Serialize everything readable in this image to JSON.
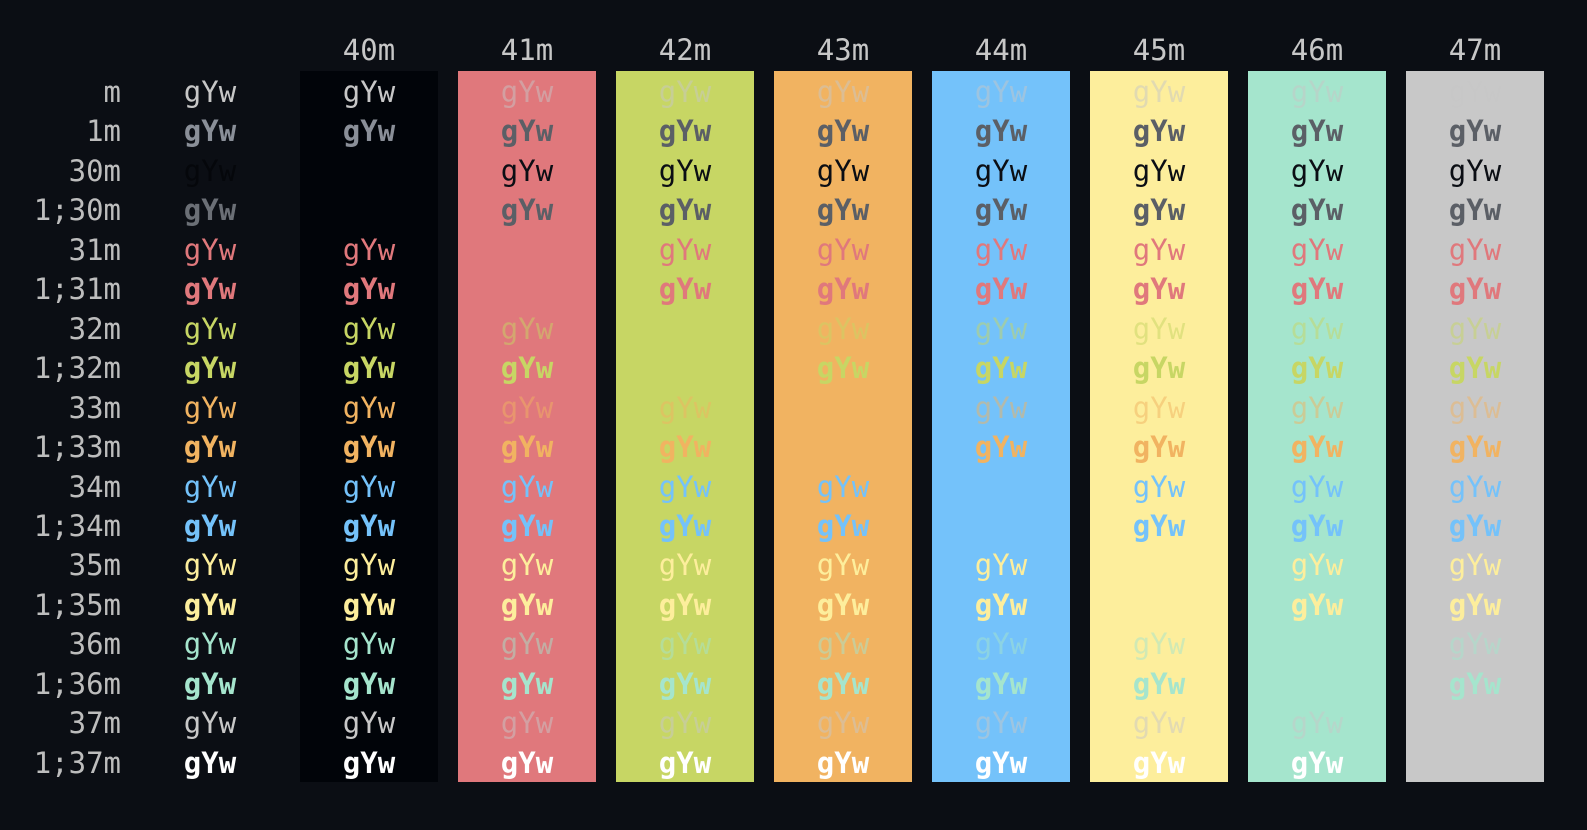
{
  "sample": "gYw",
  "column_headers": [
    "",
    "40m",
    "41m",
    "42m",
    "43m",
    "44m",
    "45m",
    "46m",
    "47m"
  ],
  "row_labels": [
    "m",
    "1m",
    "30m",
    "1;30m",
    "31m",
    "1;31m",
    "32m",
    "1;32m",
    "33m",
    "1;33m",
    "34m",
    "1;34m",
    "35m",
    "1;35m",
    "36m",
    "1;36m",
    "37m",
    "1;37m"
  ],
  "backgrounds": [
    "",
    "#010409",
    "#e0787c",
    "#c7d664",
    "#f1b361",
    "#74c2fa",
    "#fdee9c",
    "#a5e5cd",
    "#c8c8c8"
  ],
  "foregrounds": {
    "default": "#c7c7c7",
    "30": "#2b2f36",
    "31": "#e0787c",
    "32": "#c7d664",
    "33": "#f1b361",
    "34": "#74c2fa",
    "35": "#fdee9c",
    "36": "#a5e5cd",
    "37": "#c8c8c8",
    "37-bold": "#ffffff"
  }
}
